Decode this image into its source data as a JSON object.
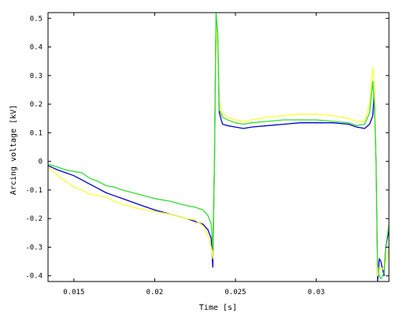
{
  "chart_data": {
    "type": "line",
    "title": "",
    "xlabel": "Time [s]",
    "ylabel": "Arcing voltage [kV]",
    "xlim": [
      0.0134,
      0.0345
    ],
    "ylim": [
      -0.42,
      0.52
    ],
    "grid": false,
    "legend": "none",
    "x_ticks": [
      {
        "value": 0.015,
        "label": "0.015"
      },
      {
        "value": 0.02,
        "label": "0.02"
      },
      {
        "value": 0.025,
        "label": "0.025"
      },
      {
        "value": 0.03,
        "label": "0.03"
      }
    ],
    "y_ticks": [
      {
        "value": 0.5,
        "label": "0.5"
      },
      {
        "value": 0.4,
        "label": "0.4"
      },
      {
        "value": 0.3,
        "label": "0.3"
      },
      {
        "value": 0.2,
        "label": "0.2"
      },
      {
        "value": 0.1,
        "label": "0.1"
      },
      {
        "value": 0.0,
        "label": "0"
      },
      {
        "value": -0.1,
        "label": "-0.1"
      },
      {
        "value": -0.2,
        "label": "-0.2"
      },
      {
        "value": -0.3,
        "label": "-0.3"
      },
      {
        "value": -0.4,
        "label": "-0.4"
      }
    ],
    "series": [
      {
        "color": "#0000cc",
        "x": [
          0.0134,
          0.014,
          0.0145,
          0.015,
          0.0155,
          0.016,
          0.0165,
          0.017,
          0.0175,
          0.018,
          0.019,
          0.02,
          0.021,
          0.022,
          0.0225,
          0.023,
          0.0233,
          0.0235,
          0.0236,
          0.0237,
          0.0238,
          0.0239,
          0.024,
          0.0242,
          0.0245,
          0.025,
          0.0255,
          0.026,
          0.027,
          0.028,
          0.029,
          0.03,
          0.031,
          0.032,
          0.0325,
          0.033,
          0.0333,
          0.0335,
          0.0336,
          0.0337,
          0.0338,
          0.0339,
          0.034,
          0.0342,
          0.0343,
          0.0345
        ],
        "y": [
          -0.015,
          -0.03,
          -0.04,
          -0.05,
          -0.065,
          -0.08,
          -0.095,
          -0.11,
          -0.12,
          -0.13,
          -0.15,
          -0.17,
          -0.185,
          -0.2,
          -0.21,
          -0.22,
          -0.24,
          -0.27,
          -0.37,
          0.0,
          0.5,
          0.42,
          0.17,
          0.13,
          0.125,
          0.12,
          0.115,
          0.12,
          0.125,
          0.13,
          0.135,
          0.135,
          0.135,
          0.13,
          0.12,
          0.115,
          0.13,
          0.16,
          0.25,
          0.0,
          -0.42,
          -0.34,
          -0.35,
          -0.4,
          -0.3,
          -0.24
        ]
      },
      {
        "color": "#ffff33",
        "x": [
          0.0134,
          0.014,
          0.0145,
          0.015,
          0.0155,
          0.016,
          0.0165,
          0.017,
          0.0175,
          0.018,
          0.019,
          0.02,
          0.021,
          0.022,
          0.0225,
          0.023,
          0.0233,
          0.0235,
          0.0236,
          0.0237,
          0.0238,
          0.0239,
          0.024,
          0.0242,
          0.0245,
          0.025,
          0.0255,
          0.026,
          0.027,
          0.028,
          0.029,
          0.03,
          0.031,
          0.032,
          0.0325,
          0.033,
          0.0333,
          0.0335,
          0.0336,
          0.0337,
          0.0338,
          0.0339,
          0.034,
          0.0342,
          0.0343,
          0.0345
        ],
        "y": [
          -0.02,
          -0.05,
          -0.07,
          -0.09,
          -0.1,
          -0.115,
          -0.12,
          -0.125,
          -0.14,
          -0.15,
          -0.165,
          -0.175,
          -0.185,
          -0.2,
          -0.205,
          -0.225,
          -0.26,
          -0.3,
          -0.34,
          0.0,
          0.5,
          0.38,
          0.21,
          0.165,
          0.155,
          0.145,
          0.14,
          0.145,
          0.155,
          0.16,
          0.165,
          0.165,
          0.16,
          0.15,
          0.14,
          0.14,
          0.2,
          0.33,
          0.26,
          0.0,
          -0.4,
          -0.38,
          -0.37,
          -0.38,
          -0.35,
          -0.31
        ]
      },
      {
        "color": "#33dd33",
        "x": [
          0.0134,
          0.014,
          0.0145,
          0.015,
          0.0155,
          0.016,
          0.0165,
          0.017,
          0.0175,
          0.018,
          0.019,
          0.02,
          0.021,
          0.022,
          0.0225,
          0.023,
          0.0233,
          0.0235,
          0.0236,
          0.0237,
          0.0238,
          0.0239,
          0.024,
          0.0242,
          0.0245,
          0.025,
          0.0255,
          0.026,
          0.027,
          0.028,
          0.029,
          0.03,
          0.031,
          0.032,
          0.0325,
          0.033,
          0.0333,
          0.0335,
          0.0336,
          0.0337,
          0.0338,
          0.0339,
          0.034,
          0.0342,
          0.0343,
          0.0345
        ],
        "y": [
          -0.01,
          -0.02,
          -0.03,
          -0.035,
          -0.04,
          -0.06,
          -0.07,
          -0.085,
          -0.09,
          -0.1,
          -0.115,
          -0.13,
          -0.14,
          -0.155,
          -0.16,
          -0.17,
          -0.19,
          -0.22,
          -0.31,
          0.0,
          0.52,
          0.45,
          0.18,
          0.155,
          0.145,
          0.135,
          0.13,
          0.135,
          0.14,
          0.145,
          0.145,
          0.145,
          0.14,
          0.135,
          0.125,
          0.13,
          0.17,
          0.28,
          0.2,
          0.0,
          -0.36,
          -0.4,
          -0.41,
          -0.39,
          -0.3,
          -0.22
        ]
      }
    ]
  }
}
